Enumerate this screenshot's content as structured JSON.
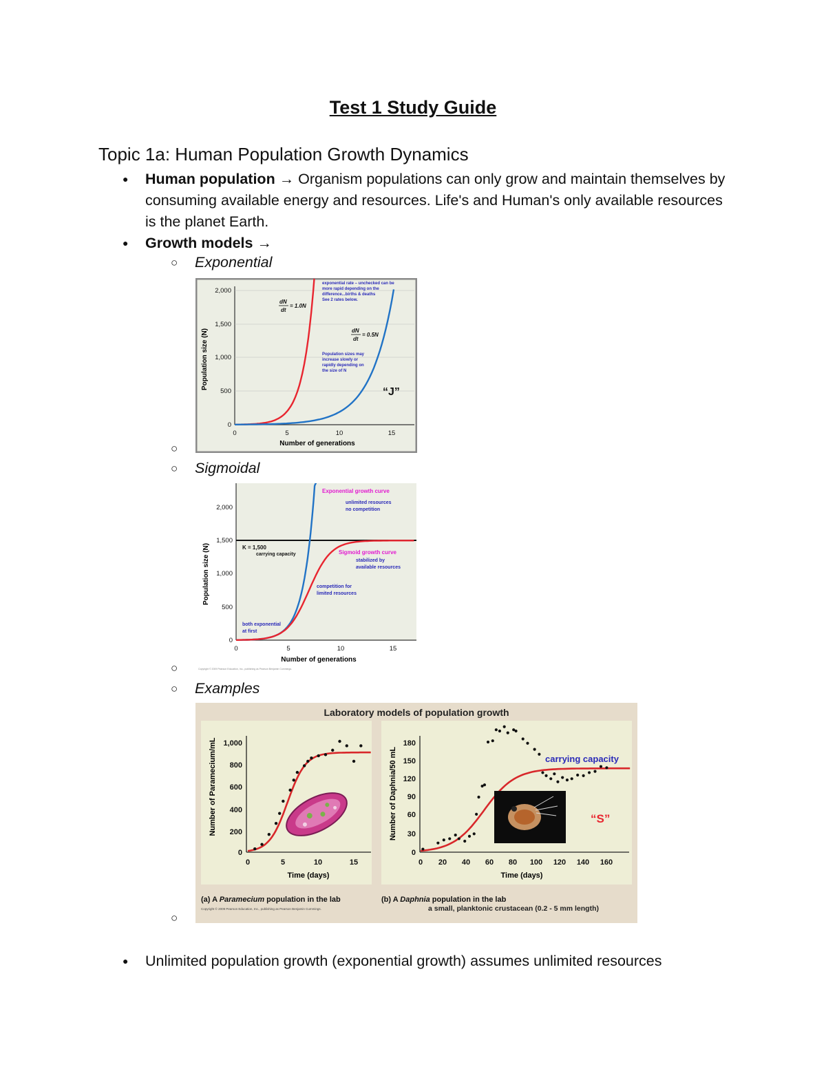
{
  "title": "Test 1 Study Guide",
  "topic": "Topic 1a: Human Population Growth Dynamics",
  "bullets": {
    "human_population_label": "Human population",
    "human_population_arrow": "→",
    "human_population_text": "Organism populations can only grow and maintain themselves by consuming available energy and resources. Life's and Human's only available resources is the planet Earth.",
    "growth_models_label": "Growth models →",
    "unlimited_text": "Unlimited population growth (exponential growth) assumes unlimited resources"
  },
  "subitems": {
    "exponential": "Exponential",
    "sigmoidal": "Sigmoidal",
    "examples": "Examples"
  },
  "bullet_glyph": "●",
  "ring_glyph": "○",
  "figures": {
    "exponential": {
      "ylabel": "Population size (N)",
      "xlabel": "Number of generations",
      "y_ticks": [
        "2,000",
        "1,500",
        "1,000",
        "500",
        "0"
      ],
      "x_ticks": [
        "0",
        "5",
        "10",
        "15"
      ],
      "eq1_top": "dN",
      "eq1_bottom": "dt",
      "eq1_rhs": "= 1.0N",
      "eq2_top": "dN",
      "eq2_bottom": "dt",
      "eq2_rhs": "= 0.5N",
      "note_top": [
        "exponential rate – unchecked can be",
        "more rapid depending on the",
        "difference...births & deaths",
        "See 2 rates below."
      ],
      "note_mid": [
        "Population sizes may",
        "increase slowly or",
        "rapidly depending on",
        "the size of N"
      ],
      "j_label": "“J”",
      "colors": {
        "fast": "#e8252f",
        "slow": "#2173c6",
        "note": "#2a2ab8",
        "bg": "#eceee4"
      }
    },
    "sigmoidal": {
      "ylabel": "Population size (N)",
      "xlabel": "Number of generations",
      "y_ticks": [
        "2,000",
        "1,500",
        "1,000",
        "500",
        "0"
      ],
      "x_ticks": [
        "0",
        "5",
        "10",
        "15"
      ],
      "k_label": "K = 1,500",
      "k_sub": "carrying capacity",
      "exp_title": "Exponential growth curve",
      "exp_sub1": "unlimited resources",
      "exp_sub2": "no competition",
      "sig_title": "Sigmoid growth curve",
      "sig_sub1": "stabilized by",
      "sig_sub2": "available resources",
      "comp1": "competition for",
      "comp2": "limited resources",
      "both1": "both exponential",
      "both2": "at first",
      "copyright": "Copyright © 2009 Pearson Education, Inc., publishing as Pearson Benjamin Cummings.",
      "colors": {
        "magenta": "#e21ad0",
        "blue": "#2a2ab8",
        "red": "#e8252f",
        "exp": "#2173c6"
      }
    },
    "examples": {
      "header": "Laboratory models of population growth",
      "a_ylabel": "Number of Paramecium/mL",
      "a_xlabel": "Time (days)",
      "a_y_ticks": [
        "1,000",
        "800",
        "600",
        "400",
        "200",
        "0"
      ],
      "a_x_ticks": [
        "0",
        "5",
        "10",
        "15"
      ],
      "a_caption_pre": "(a) A ",
      "a_caption_em": "Paramecium",
      "a_caption_post": " population in the lab",
      "b_ylabel": "Number of Daphnia/50 mL",
      "b_xlabel": "Time (days)",
      "b_y_ticks": [
        "180",
        "150",
        "120",
        "90",
        "60",
        "30",
        "0"
      ],
      "b_x_ticks": [
        "0",
        "20",
        "40",
        "60",
        "80",
        "100",
        "120",
        "140",
        "160"
      ],
      "b_caption_pre": "(b) A ",
      "b_caption_em": "Daphnia",
      "b_caption_post": " population in the lab",
      "b_caption_sub": "a small, planktonic crustacean (0.2 - 5 mm length)",
      "carrying": "carrying capacity",
      "s_label": "“S”",
      "copyright": "Copyright © 2009 Pearson Education, Inc., publishing as Pearson Benjamin Cummings.",
      "colors": {
        "frame": "#e6dccb",
        "panel": "#eeeed6",
        "curve": "#d8272a",
        "label": "#2a2ab8",
        "s": "#e8252f"
      }
    }
  }
}
